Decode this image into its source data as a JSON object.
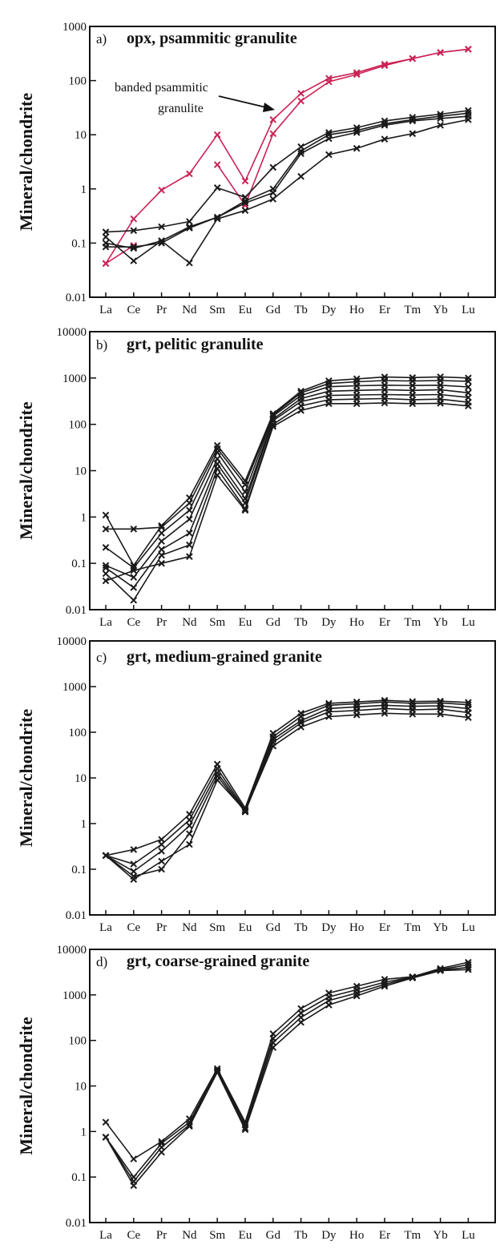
{
  "figure": {
    "background": "#ffffff",
    "colors": {
      "black_series": "#1a1a1a",
      "red_series": "#cc2255"
    }
  },
  "chart_data": [
    {
      "type": "line",
      "panel": "a)",
      "title": "opx, psammitic granulite",
      "xlabel": "",
      "ylabel": "Mineral/chondrite",
      "yscale": "log",
      "ylim": [
        0.01,
        1000
      ],
      "yticks": [
        "1000",
        "100",
        "10",
        "1",
        "0.1",
        "0.01"
      ],
      "categories": [
        "La",
        "Ce",
        "Pr",
        "Nd",
        "Sm",
        "Eu",
        "Gd",
        "Tb",
        "Dy",
        "Ho",
        "Er",
        "Tm",
        "Yb",
        "Lu"
      ],
      "marker": "x",
      "annotation": {
        "text_lines": [
          "banded psammitic",
          "granulite"
        ],
        "arrow": true
      },
      "series": [
        {
          "color": "#cc2255",
          "values": [
            0.042,
            0.28,
            0.95,
            1.9,
            10.0,
            1.4,
            19,
            58,
            110,
            140,
            200,
            255,
            330,
            380
          ]
        },
        {
          "color": "#cc2255",
          "values": [
            0.042,
            0.09,
            null,
            null,
            2.8,
            0.5,
            10.5,
            42,
            95,
            130,
            190,
            255,
            330,
            380
          ]
        },
        {
          "color": "#1a1a1a",
          "values": [
            0.16,
            0.17,
            0.2,
            0.25,
            1.05,
            0.7,
            2.5,
            6.0,
            11.0,
            13.5,
            18.0,
            21.0,
            24.0,
            28.0
          ]
        },
        {
          "color": "#1a1a1a",
          "values": [
            0.13,
            0.047,
            0.11,
            0.2,
            0.3,
            0.6,
            1.0,
            5.0,
            10.0,
            12.0,
            16.0,
            19.0,
            22.0,
            25.0
          ]
        },
        {
          "color": "#1a1a1a",
          "values": [
            0.085,
            0.085,
            0.1,
            0.19,
            0.3,
            0.55,
            0.85,
            4.5,
            8.5,
            11.0,
            15.0,
            18.0,
            20.0,
            22.0
          ]
        },
        {
          "color": "#1a1a1a",
          "values": [
            0.1,
            0.08,
            0.11,
            0.043,
            0.28,
            0.4,
            0.65,
            1.7,
            4.3,
            5.6,
            8.3,
            10.5,
            15.0,
            19.0
          ]
        }
      ]
    },
    {
      "type": "line",
      "panel": "b)",
      "title": "grt, pelitic granulite",
      "xlabel": "",
      "ylabel": "Mineral/chondrite",
      "yscale": "log",
      "ylim": [
        0.01,
        10000
      ],
      "yticks": [
        "10000",
        "1000",
        "100",
        "10",
        "1",
        "0.1",
        "0.01"
      ],
      "categories": [
        "La",
        "Ce",
        "Pr",
        "Nd",
        "Sm",
        "Eu",
        "Gd",
        "Tb",
        "Dy",
        "Ho",
        "Er",
        "Tm",
        "Yb",
        "Lu"
      ],
      "marker": "x",
      "series": [
        {
          "color": "#1a1a1a",
          "values": [
            1.1,
            0.09,
            0.65,
            2.6,
            35,
            6.0,
            170,
            520,
            870,
            960,
            1050,
            1020,
            1060,
            1000
          ]
        },
        {
          "color": "#1a1a1a",
          "values": [
            0.55,
            0.55,
            0.6,
            2.0,
            30,
            5.0,
            160,
            480,
            760,
            830,
            880,
            860,
            880,
            850
          ]
        },
        {
          "color": "#1a1a1a",
          "values": [
            0.22,
            0.08,
            0.45,
            1.4,
            25,
            3.5,
            150,
            420,
            650,
            680,
            700,
            690,
            700,
            640
          ]
        },
        {
          "color": "#1a1a1a",
          "values": [
            0.09,
            0.05,
            0.3,
            0.9,
            18,
            2.5,
            130,
            360,
            520,
            540,
            560,
            540,
            560,
            480
          ]
        },
        {
          "color": "#1a1a1a",
          "values": [
            0.08,
            0.03,
            0.2,
            0.45,
            14,
            2.0,
            120,
            310,
            420,
            430,
            440,
            430,
            440,
            380
          ]
        },
        {
          "color": "#1a1a1a",
          "values": [
            0.06,
            0.016,
            0.15,
            0.25,
            11,
            1.5,
            100,
            250,
            340,
            350,
            360,
            340,
            350,
            300
          ]
        },
        {
          "color": "#1a1a1a",
          "values": [
            0.042,
            0.07,
            0.1,
            0.14,
            8,
            1.4,
            90,
            200,
            280,
            280,
            290,
            280,
            285,
            250
          ]
        }
      ]
    },
    {
      "type": "line",
      "panel": "c)",
      "title": "grt, medium-grained granite",
      "xlabel": "",
      "ylabel": "Mineral/chondrite",
      "yscale": "log",
      "ylim": [
        0.01,
        10000
      ],
      "yticks": [
        "10000",
        "1000",
        "100",
        "10",
        "1",
        "0.1",
        "0.01"
      ],
      "categories": [
        "La",
        "Ce",
        "Pr",
        "Nd",
        "Sm",
        "Eu",
        "Gd",
        "Tb",
        "Dy",
        "Ho",
        "Er",
        "Tm",
        "Yb",
        "Lu"
      ],
      "marker": "x",
      "series": [
        {
          "color": "#1a1a1a",
          "values": [
            0.2,
            0.27,
            0.45,
            1.6,
            20,
            2.2,
            95,
            260,
            430,
            460,
            500,
            470,
            480,
            450
          ]
        },
        {
          "color": "#1a1a1a",
          "values": [
            0.2,
            0.13,
            0.35,
            1.2,
            16,
            2.0,
            80,
            220,
            390,
            420,
            460,
            430,
            440,
            400
          ]
        },
        {
          "color": "#1a1a1a",
          "values": [
            0.2,
            0.09,
            0.25,
            0.9,
            13,
            1.9,
            70,
            180,
            330,
            360,
            390,
            370,
            380,
            330
          ]
        },
        {
          "color": "#1a1a1a",
          "values": [
            0.2,
            0.07,
            0.1,
            0.6,
            11,
            1.8,
            60,
            160,
            280,
            300,
            330,
            310,
            320,
            270
          ]
        },
        {
          "color": "#1a1a1a",
          "values": [
            0.2,
            0.06,
            0.15,
            0.35,
            9,
            1.9,
            50,
            130,
            220,
            240,
            260,
            250,
            250,
            210
          ]
        }
      ]
    },
    {
      "type": "line",
      "panel": "d)",
      "title": "grt, coarse-grained granite",
      "xlabel": "",
      "ylabel": "Mineral/chondrite",
      "yscale": "log",
      "ylim": [
        0.01,
        10000
      ],
      "yticks": [
        "10000",
        "1000",
        "100",
        "10",
        "1",
        "0.1",
        "0.01"
      ],
      "categories": [
        "La",
        "Ce",
        "Pr",
        "Nd",
        "Sm",
        "Eu",
        "Gd",
        "Tb",
        "Dy",
        "Ho",
        "Er",
        "Tm",
        "Yb",
        "Lu"
      ],
      "marker": "x",
      "series": [
        {
          "color": "#1a1a1a",
          "values": [
            1.6,
            0.25,
            0.6,
            1.9,
            24,
            1.6,
            140,
            500,
            1100,
            1550,
            2200,
            2500,
            3800,
            5200
          ]
        },
        {
          "color": "#1a1a1a",
          "values": [
            0.75,
            0.1,
            0.55,
            1.6,
            22,
            1.4,
            110,
            400,
            900,
            1300,
            1900,
            2450,
            3600,
            4600
          ]
        },
        {
          "color": "#1a1a1a",
          "values": [
            0.75,
            0.08,
            0.45,
            1.4,
            21,
            1.2,
            90,
            320,
            750,
            1100,
            1700,
            2400,
            3500,
            4000
          ]
        },
        {
          "color": "#1a1a1a",
          "values": [
            0.75,
            0.065,
            0.35,
            1.3,
            20,
            1.1,
            70,
            250,
            600,
            950,
            1550,
            2350,
            3400,
            3600
          ]
        }
      ]
    }
  ]
}
